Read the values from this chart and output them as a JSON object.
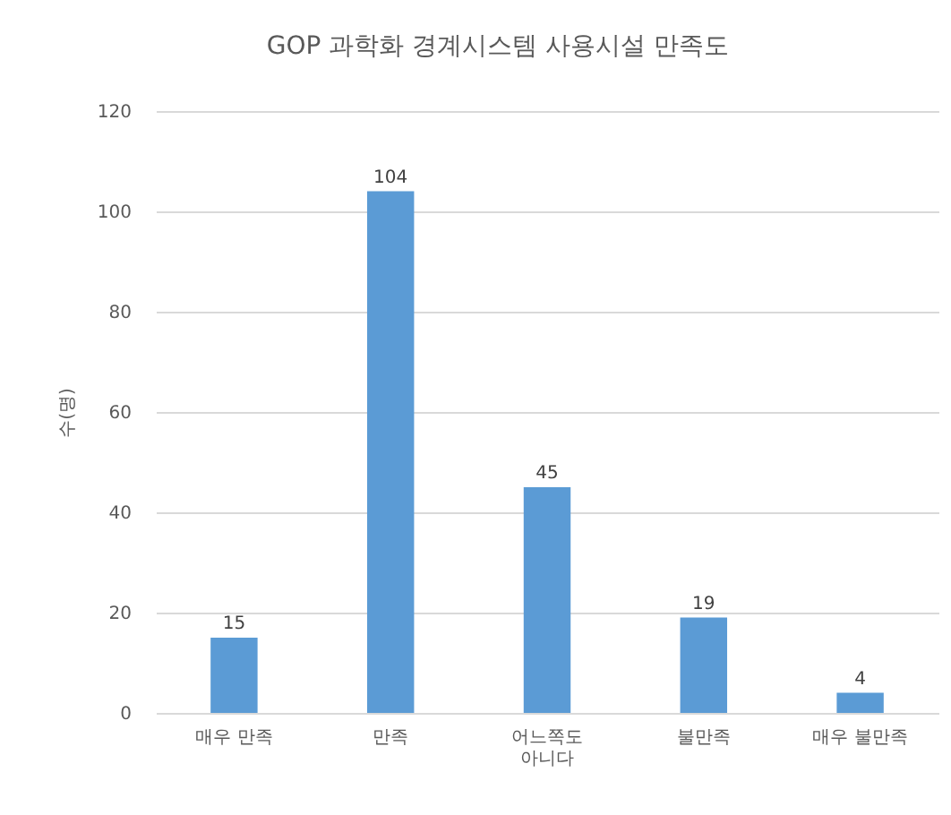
{
  "chart_data": {
    "type": "bar",
    "title": "GOP 과학화 경계시스템 사용시설 만족도",
    "ylabel": "수(명)",
    "categories": [
      "매우 만족",
      "만족",
      "어느쪽도\n아니다",
      "불만족",
      "매우 불만족"
    ],
    "values": [
      15,
      104,
      45,
      19,
      4
    ],
    "color": "#5b9bd5",
    "ylim": [
      0,
      120
    ],
    "yticks": [
      0,
      20,
      40,
      60,
      80,
      100,
      120
    ],
    "grid": "y",
    "data_labels": true
  }
}
